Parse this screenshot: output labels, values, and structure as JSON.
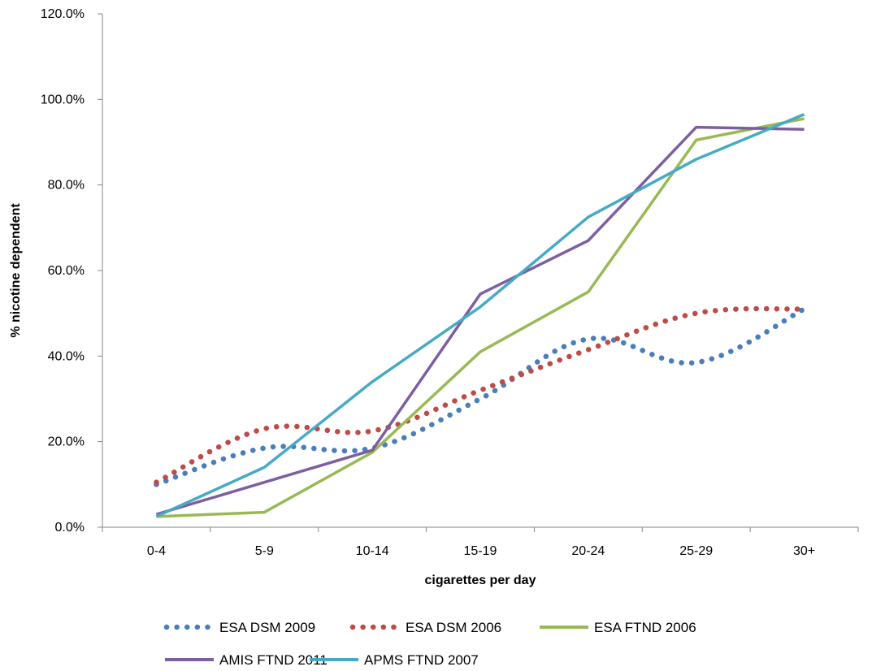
{
  "chart_data": {
    "type": "line",
    "xlabel": "cigarettes per day",
    "ylabel": "% nicotine dependent",
    "categories": [
      "0-4",
      "5-9",
      "10-14",
      "15-19",
      "20-24",
      "25-29",
      "30+"
    ],
    "ylim": [
      0,
      120
    ],
    "yticks": [
      0,
      20,
      40,
      60,
      80,
      100,
      120
    ],
    "ytick_labels": [
      "0.0%",
      "20.0%",
      "40.0%",
      "60.0%",
      "80.0%",
      "100.0%",
      "120.0%"
    ],
    "grid": false,
    "legend_position": "bottom",
    "series": [
      {
        "name": "ESA DSM 2009",
        "color": "#4a7ebb",
        "style": "dotted",
        "values": [
          10.0,
          18.5,
          18.5,
          30.0,
          44.0,
          38.5,
          51.0
        ]
      },
      {
        "name": "ESA DSM 2006",
        "color": "#be4b48",
        "style": "dotted",
        "values": [
          10.5,
          23.0,
          22.5,
          32.0,
          41.5,
          50.0,
          51.0
        ]
      },
      {
        "name": "ESA FTND 2006",
        "color": "#98b954",
        "style": "solid",
        "values": [
          2.5,
          3.5,
          17.5,
          41.0,
          55.0,
          90.5,
          95.5
        ]
      },
      {
        "name": "AMIS FTND 2011",
        "color": "#7d5fa0",
        "style": "solid",
        "values": [
          3.0,
          10.5,
          18.0,
          54.5,
          67.0,
          93.5,
          93.0
        ]
      },
      {
        "name": "APMS FTND 2007",
        "color": "#46aac5",
        "style": "solid",
        "values": [
          2.5,
          14.0,
          34.0,
          51.5,
          72.5,
          86.0,
          96.5
        ]
      }
    ]
  }
}
